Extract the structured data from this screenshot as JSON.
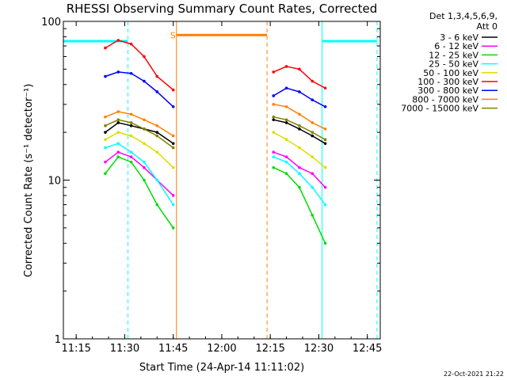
{
  "chart_data": {
    "type": "line",
    "title": "RHESSI Observing Summary Count Rates, Corrected",
    "xlabel": "Start Time (24-Apr-14 11:11:02)",
    "ylabel": "Corrected Count Rate (s⁻¹ detector⁻¹)",
    "yscale": "log",
    "ylim": [
      1,
      100
    ],
    "xlim": [
      "11:11:02",
      "12:49:00"
    ],
    "x_ticks": [
      "11:15",
      "11:30",
      "11:45",
      "12:00",
      "12:15",
      "12:30",
      "12:45"
    ],
    "y_ticks": [
      "1",
      "10",
      "100"
    ],
    "legend_header": [
      "Det 1,3,4,5,6,9,",
      "Att 0"
    ],
    "legend_position": "right",
    "series": [
      {
        "name": "3 - 6 keV",
        "color": "#000000",
        "x": [
          "11:24",
          "11:28",
          "11:32",
          "11:36",
          "11:40",
          "11:45",
          "12:16",
          "12:20",
          "12:24",
          "12:28",
          "12:32"
        ],
        "y": [
          20,
          23,
          22,
          21,
          20,
          17,
          24,
          23,
          21,
          19,
          17
        ]
      },
      {
        "name": "6 - 12 keV",
        "color": "#ff00ff",
        "x": [
          "11:24",
          "11:28",
          "11:32",
          "11:36",
          "11:40",
          "11:45",
          "12:16",
          "12:20",
          "12:24",
          "12:28",
          "12:32"
        ],
        "y": [
          13,
          15,
          14,
          12,
          10,
          8,
          15,
          14,
          12,
          11,
          9
        ]
      },
      {
        "name": "12 - 25 keV",
        "color": "#00dd00",
        "x": [
          "11:24",
          "11:28",
          "11:32",
          "11:36",
          "11:40",
          "11:45",
          "12:16",
          "12:20",
          "12:24",
          "12:28",
          "12:32"
        ],
        "y": [
          11,
          14,
          13,
          10,
          7,
          5,
          12,
          11,
          9,
          6,
          4
        ]
      },
      {
        "name": "25 - 50 keV",
        "color": "#00ffff",
        "x": [
          "11:24",
          "11:28",
          "11:32",
          "11:36",
          "11:40",
          "11:45",
          "12:16",
          "12:20",
          "12:24",
          "12:28",
          "12:32"
        ],
        "y": [
          16,
          17,
          15,
          13,
          10,
          7,
          14,
          13,
          11,
          9,
          7
        ]
      },
      {
        "name": "50 - 100 keV",
        "color": "#dddd00",
        "x": [
          "11:24",
          "11:28",
          "11:32",
          "11:36",
          "11:40",
          "11:45",
          "12:16",
          "12:20",
          "12:24",
          "12:28",
          "12:32"
        ],
        "y": [
          18,
          20,
          19,
          17,
          15,
          12,
          20,
          18,
          16,
          14,
          12
        ]
      },
      {
        "name": "100 - 300 keV",
        "color": "#ff0000",
        "x": [
          "11:24",
          "11:28",
          "11:32",
          "11:36",
          "11:40",
          "11:45",
          "12:16",
          "12:20",
          "12:24",
          "12:28",
          "12:32"
        ],
        "y": [
          68,
          76,
          72,
          60,
          45,
          37,
          48,
          52,
          50,
          42,
          38
        ]
      },
      {
        "name": "300 - 800 keV",
        "color": "#0000ff",
        "x": [
          "11:24",
          "11:28",
          "11:32",
          "11:36",
          "11:40",
          "11:45",
          "12:16",
          "12:20",
          "12:24",
          "12:28",
          "12:32"
        ],
        "y": [
          45,
          48,
          47,
          42,
          36,
          29,
          34,
          38,
          36,
          32,
          29
        ]
      },
      {
        "name": "800 - 7000 keV",
        "color": "#ff8000",
        "x": [
          "11:24",
          "11:28",
          "11:32",
          "11:36",
          "11:40",
          "11:45",
          "12:16",
          "12:20",
          "12:24",
          "12:28",
          "12:32"
        ],
        "y": [
          25,
          27,
          26,
          24,
          22,
          19,
          30,
          29,
          26,
          23,
          21
        ]
      },
      {
        "name": "7000 - 15000 keV",
        "color": "#808000",
        "x": [
          "11:24",
          "11:28",
          "11:32",
          "11:36",
          "11:40",
          "11:45",
          "12:16",
          "12:20",
          "12:24",
          "12:28",
          "12:32"
        ],
        "y": [
          22,
          24,
          23,
          21,
          19,
          16,
          25,
          24,
          22,
          20,
          18
        ]
      }
    ],
    "annotations": [
      {
        "type": "flag-bar",
        "label": "",
        "color": "#00ffff",
        "x": [
          "11:11:02",
          "11:31"
        ],
        "y": 75
      },
      {
        "type": "flag-bar",
        "label": "",
        "color": "#00ffff",
        "x": [
          "12:31",
          "12:48"
        ],
        "y": 75
      },
      {
        "type": "flag-bar",
        "label": "S",
        "color": "#ff8000",
        "x": [
          "11:46",
          "12:14"
        ],
        "y": 82
      }
    ]
  },
  "footer_timestamp": "22-Oct-2021 21:22"
}
